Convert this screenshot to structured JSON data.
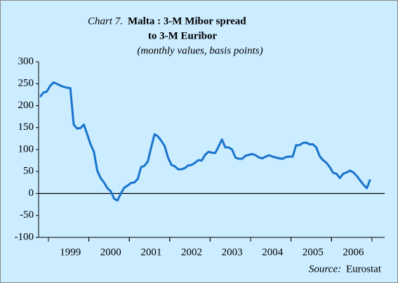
{
  "chart_data": {
    "type": "line",
    "chart_label": "Chart 7.",
    "title": [
      "Malta : 3-M Mibor spread",
      "to 3-M Euribor"
    ],
    "subtitle": "(monthly values, basis points)",
    "source_label": "Source:",
    "source": "Eurostat",
    "categories": [
      null,
      null,
      null,
      null,
      null,
      null,
      null,
      null,
      null,
      "1999",
      null,
      null,
      null,
      null,
      null,
      null,
      null,
      null,
      null,
      null,
      null,
      "2000",
      null,
      null,
      null,
      null,
      null,
      null,
      null,
      null,
      null,
      null,
      null,
      "2001",
      null,
      null,
      null,
      null,
      null,
      null,
      null,
      null,
      null,
      null,
      null,
      "2002",
      null,
      null,
      null,
      null,
      null,
      null,
      null,
      null,
      null,
      null,
      null,
      "2003",
      null,
      null,
      null,
      null,
      null,
      null,
      null,
      null,
      null,
      null,
      null,
      "2004",
      null,
      null,
      null,
      null,
      null,
      null,
      null,
      null,
      null,
      null,
      null,
      "2005",
      null,
      null,
      null,
      null,
      null,
      null,
      null,
      null,
      null,
      null,
      null,
      "2006",
      null,
      null,
      null,
      null,
      null
    ],
    "series": [
      {
        "name": "Spread",
        "color": "#1874cd",
        "values": [
          220,
          230,
          232,
          245,
          253,
          250,
          246,
          243,
          241,
          240,
          157,
          148,
          149,
          157,
          135,
          112,
          95,
          52,
          35,
          25,
          12,
          5,
          -12,
          -16,
          0,
          13,
          18,
          24,
          25,
          33,
          60,
          63,
          73,
          105,
          135,
          130,
          120,
          108,
          82,
          65,
          62,
          55,
          55,
          58,
          64,
          65,
          70,
          76,
          75,
          88,
          95,
          93,
          92,
          107,
          123,
          105,
          105,
          100,
          82,
          79,
          79,
          86,
          88,
          90,
          87,
          82,
          80,
          84,
          87,
          84,
          82,
          80,
          79,
          83,
          84,
          84,
          110,
          110,
          115,
          116,
          112,
          112,
          105,
          85,
          76,
          70,
          60,
          47,
          45,
          35,
          45,
          48,
          52,
          48,
          40,
          30,
          20,
          12,
          32
        ]
      }
    ],
    "ylim": [
      -100,
      300
    ],
    "yticks": [
      -100,
      -50,
      0,
      50,
      100,
      150,
      200,
      250,
      300
    ]
  }
}
